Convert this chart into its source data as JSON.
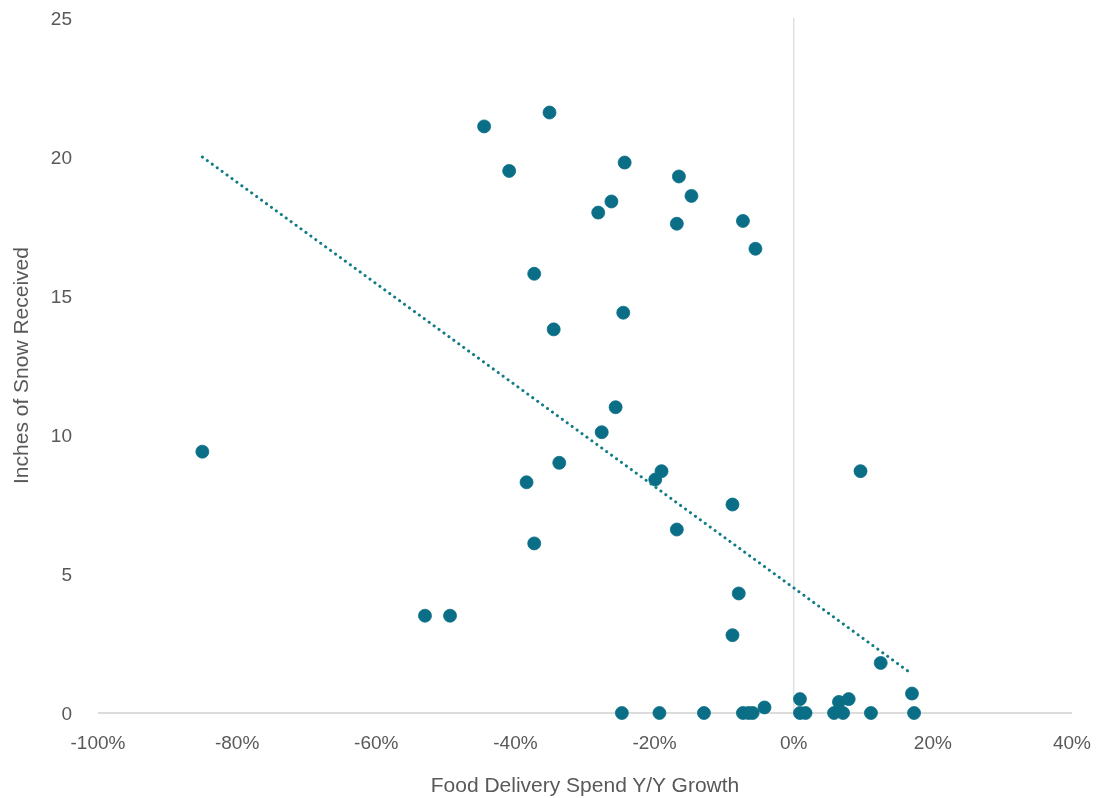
{
  "chart_data": {
    "type": "scatter",
    "xlabel": "Food Delivery Spend Y/Y Growth",
    "ylabel": "Inches of Snow Received",
    "xlim": [
      -100,
      40
    ],
    "ylim": [
      0,
      25
    ],
    "xticks": [
      {
        "value": -100,
        "label": "-100%"
      },
      {
        "value": -80,
        "label": "-80%"
      },
      {
        "value": -60,
        "label": "-60%"
      },
      {
        "value": -40,
        "label": "-40%"
      },
      {
        "value": -20,
        "label": "-20%"
      },
      {
        "value": 0,
        "label": "0%"
      },
      {
        "value": 20,
        "label": "20%"
      },
      {
        "value": 40,
        "label": "40%"
      }
    ],
    "yticks": [
      0,
      5,
      10,
      15,
      20,
      25
    ],
    "grid": false,
    "ref_lines": [
      {
        "axis": "x",
        "value": 0,
        "color": "#e0e0e0"
      }
    ],
    "series": [
      {
        "color": "#0a6e86",
        "marker": "circle",
        "x": [
          -85.0,
          -44.5,
          -35.1,
          -40.9,
          -24.3,
          -16.5,
          -14.7,
          -26.2,
          -28.1,
          -7.3,
          -16.8,
          -5.5,
          -37.3,
          -24.5,
          -34.5,
          -25.6,
          -27.6,
          -33.7,
          -38.4,
          -19.0,
          -19.9,
          -37.3,
          -8.8,
          -16.8,
          9.6,
          -53.0,
          -49.4,
          -7.9,
          -8.8,
          12.5,
          17.0,
          -24.7,
          -19.3,
          -12.9,
          -7.3,
          -6.5,
          -5.9,
          -4.2,
          0.9,
          0.9,
          1.7,
          5.8,
          6.5,
          7.1,
          7.9,
          11.1,
          17.3
        ],
        "values": [
          9.4,
          21.1,
          21.6,
          19.5,
          19.8,
          19.3,
          18.6,
          18.4,
          18.0,
          17.7,
          17.6,
          16.7,
          15.8,
          14.4,
          13.8,
          11.0,
          10.1,
          9.0,
          8.3,
          8.7,
          8.4,
          6.1,
          7.5,
          6.6,
          8.7,
          3.5,
          3.5,
          4.3,
          2.8,
          1.8,
          0.7,
          0,
          0,
          0,
          0,
          0,
          0,
          0.2,
          0.5,
          0,
          0,
          0,
          0.4,
          0,
          0.5,
          0,
          0
        ]
      },
      {
        "type": "line",
        "color": "#117c85",
        "line_style": "dotted",
        "x": [
          -85.0,
          17.0
        ],
        "values": [
          20.0,
          1.4
        ]
      }
    ]
  }
}
